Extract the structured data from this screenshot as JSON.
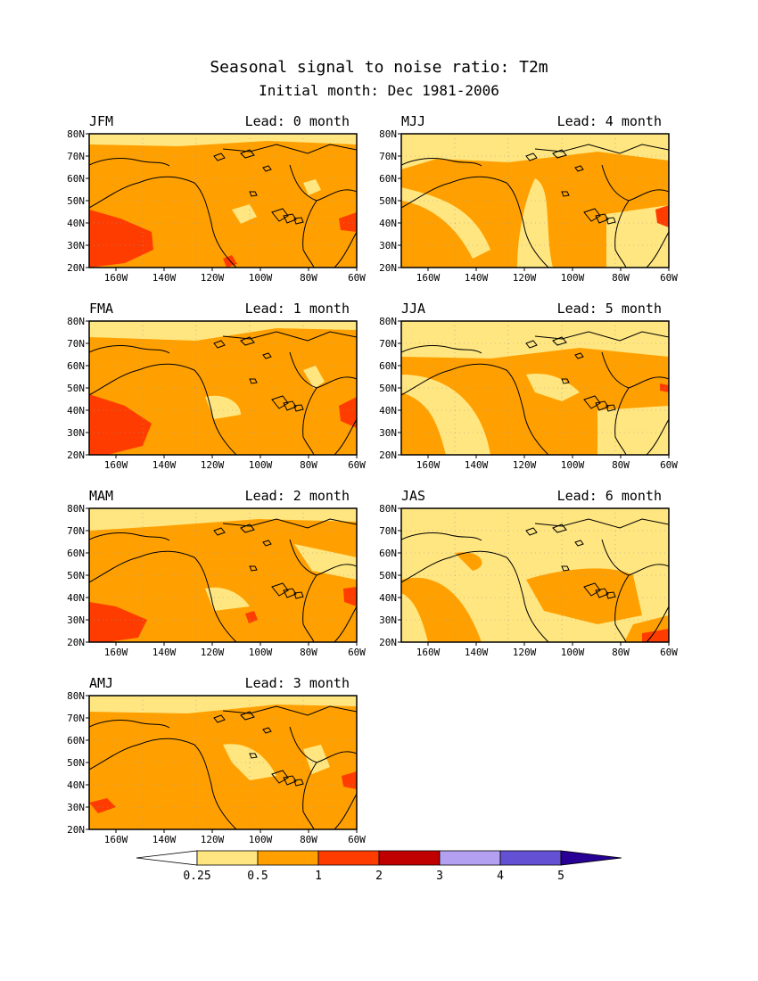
{
  "title": "Seasonal signal to noise ratio: T2m",
  "subtitle": "Initial month: Dec 1981-2006",
  "lat_labels": [
    "80N",
    "70N",
    "60N",
    "50N",
    "40N",
    "30N",
    "20N"
  ],
  "lon_labels": [
    "160W",
    "140W",
    "120W",
    "100W",
    "80W",
    "60W"
  ],
  "panels": [
    {
      "season": "JFM",
      "lead": "Lead: 0 month"
    },
    {
      "season": "MJJ",
      "lead": "Lead: 4 month"
    },
    {
      "season": "FMA",
      "lead": "Lead: 1 month"
    },
    {
      "season": "JJA",
      "lead": "Lead: 5 month"
    },
    {
      "season": "MAM",
      "lead": "Lead: 2 month"
    },
    {
      "season": "JAS",
      "lead": "Lead: 6 month"
    },
    {
      "season": "AMJ",
      "lead": "Lead: 3 month"
    }
  ],
  "colorbar": {
    "labels": [
      "0.25",
      "0.5",
      "1",
      "2",
      "3",
      "4",
      "5"
    ],
    "colors": [
      "#ffffff",
      "#ffe680",
      "#ffa000",
      "#ff3c00",
      "#c00000",
      "#b4a0f0",
      "#6450d2",
      "#280096"
    ]
  },
  "palette": {
    "low": "#ffe680",
    "mid": "#ffa000",
    "high": "#ff3c00",
    "none": "#ffffff"
  }
}
